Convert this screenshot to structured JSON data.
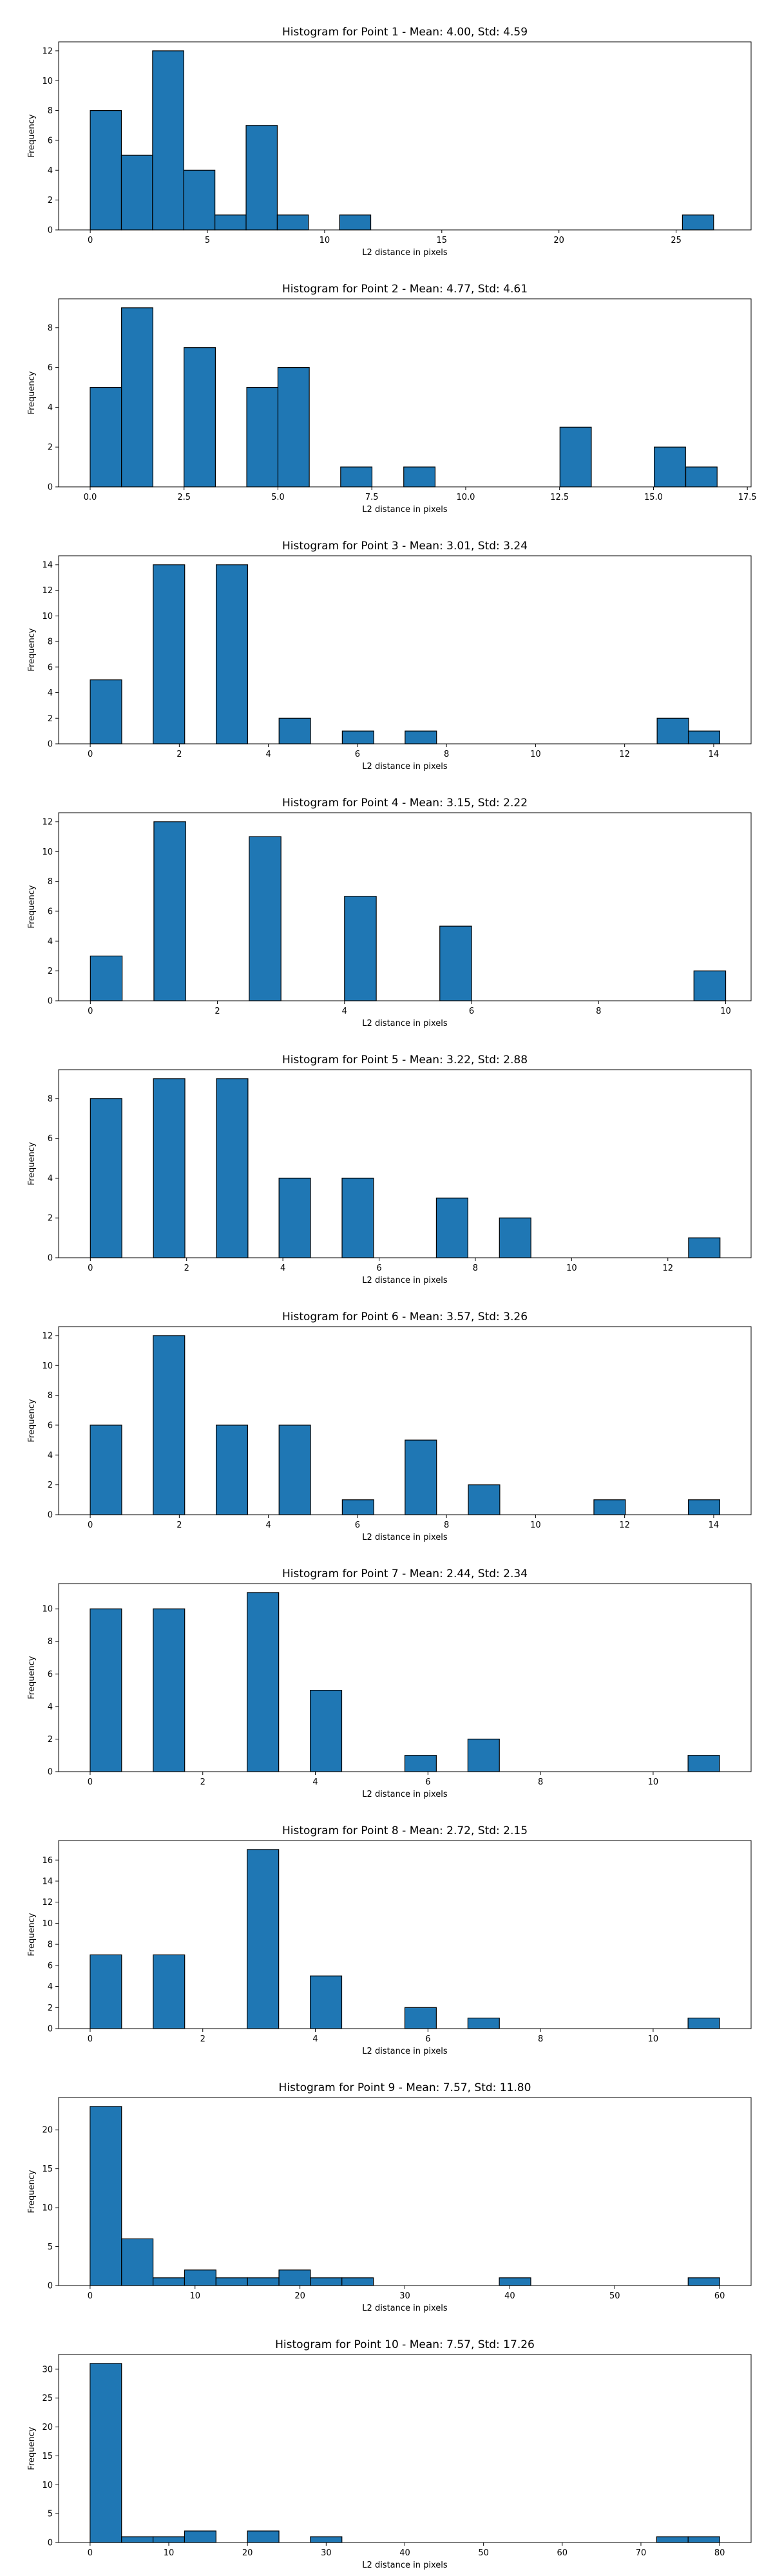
{
  "style": {
    "bar_color": "#1f77b4",
    "edge_color": "#000000"
  },
  "chart_data": [
    {
      "type": "bar",
      "title": "Histogram for Point 1 - Mean: 4.00, Std: 4.59",
      "xlabel": "L2 distance in pixels",
      "ylabel": "Frequency",
      "xlim": [
        -1.35,
        28.2
      ],
      "ylim": [
        0,
        12.6
      ],
      "xticks": [
        0,
        5,
        10,
        15,
        20,
        25
      ],
      "xtick_labels": [
        "0",
        "5",
        "10",
        "15",
        "20",
        "25"
      ],
      "yticks": [
        0,
        2,
        4,
        6,
        8,
        10,
        12
      ],
      "ytick_labels": [
        "0",
        "2",
        "4",
        "6",
        "8",
        "10",
        "12"
      ],
      "bin_width": 1.33,
      "bins": [
        {
          "x": 0.0,
          "count": 8
        },
        {
          "x": 1.33,
          "count": 5
        },
        {
          "x": 2.66,
          "count": 12
        },
        {
          "x": 3.99,
          "count": 4
        },
        {
          "x": 5.32,
          "count": 1
        },
        {
          "x": 6.65,
          "count": 7
        },
        {
          "x": 7.98,
          "count": 1
        },
        {
          "x": 10.64,
          "count": 1
        },
        {
          "x": 25.27,
          "count": 1
        }
      ]
    },
    {
      "type": "bar",
      "title": "Histogram for Point 2 - Mean: 4.77, Std: 4.61",
      "xlabel": "L2 distance in pixels",
      "ylabel": "Frequency",
      "xlim": [
        -0.84,
        17.6
      ],
      "ylim": [
        0,
        9.45
      ],
      "xticks": [
        0,
        2.5,
        5,
        7.5,
        10,
        12.5,
        15,
        17.5
      ],
      "xtick_labels": [
        "0.0",
        "2.5",
        "5.0",
        "7.5",
        "10.0",
        "12.5",
        "15.0",
        "17.5"
      ],
      "yticks": [
        0,
        2,
        4,
        6,
        8
      ],
      "ytick_labels": [
        "0",
        "2",
        "4",
        "6",
        "8"
      ],
      "bin_width": 0.835,
      "bins": [
        {
          "x": 0.0,
          "count": 5
        },
        {
          "x": 0.835,
          "count": 9
        },
        {
          "x": 2.5,
          "count": 7
        },
        {
          "x": 4.17,
          "count": 5
        },
        {
          "x": 5.0,
          "count": 6
        },
        {
          "x": 6.67,
          "count": 1
        },
        {
          "x": 8.35,
          "count": 1
        },
        {
          "x": 12.51,
          "count": 3
        },
        {
          "x": 15.02,
          "count": 2
        },
        {
          "x": 15.86,
          "count": 1
        }
      ]
    },
    {
      "type": "bar",
      "title": "Histogram for Point 3 - Mean: 3.01, Std: 3.24",
      "xlabel": "L2 distance in pixels",
      "ylabel": "Frequency",
      "xlim": [
        -0.71,
        14.84
      ],
      "ylim": [
        0,
        14.7
      ],
      "xticks": [
        0,
        2,
        4,
        6,
        8,
        10,
        12,
        14
      ],
      "xtick_labels": [
        "0",
        "2",
        "4",
        "6",
        "8",
        "10",
        "12",
        "14"
      ],
      "yticks": [
        0,
        2,
        4,
        6,
        8,
        10,
        12,
        14
      ],
      "ytick_labels": [
        "0",
        "2",
        "4",
        "6",
        "8",
        "10",
        "12",
        "14"
      ],
      "bin_width": 0.707,
      "bins": [
        {
          "x": 0.0,
          "count": 5
        },
        {
          "x": 1.414,
          "count": 14
        },
        {
          "x": 2.828,
          "count": 14
        },
        {
          "x": 4.24,
          "count": 2
        },
        {
          "x": 5.66,
          "count": 1
        },
        {
          "x": 7.07,
          "count": 1
        },
        {
          "x": 12.73,
          "count": 2
        },
        {
          "x": 13.43,
          "count": 1
        }
      ]
    },
    {
      "type": "bar",
      "title": "Histogram for Point 4 - Mean: 3.15, Std: 2.22",
      "xlabel": "L2 distance in pixels",
      "ylabel": "Frequency",
      "xlim": [
        -0.5,
        10.4
      ],
      "ylim": [
        0,
        12.6
      ],
      "xticks": [
        0,
        2,
        4,
        6,
        8,
        10
      ],
      "xtick_labels": [
        "0",
        "2",
        "4",
        "6",
        "8",
        "10"
      ],
      "yticks": [
        0,
        2,
        4,
        6,
        8,
        10,
        12
      ],
      "ytick_labels": [
        "0",
        "2",
        "4",
        "6",
        "8",
        "10",
        "12"
      ],
      "bin_width": 0.5,
      "bins": [
        {
          "x": 0.0,
          "count": 3
        },
        {
          "x": 1.0,
          "count": 12
        },
        {
          "x": 2.5,
          "count": 11
        },
        {
          "x": 4.0,
          "count": 7
        },
        {
          "x": 5.5,
          "count": 5
        },
        {
          "x": 9.5,
          "count": 2
        }
      ]
    },
    {
      "type": "bar",
      "title": "Histogram for Point 5 - Mean: 3.22, Std: 2.88",
      "xlabel": "L2 distance in pixels",
      "ylabel": "Frequency",
      "xlim": [
        -0.66,
        13.73
      ],
      "ylim": [
        0,
        9.45
      ],
      "xticks": [
        0,
        2,
        4,
        6,
        8,
        10,
        12
      ],
      "xtick_labels": [
        "0",
        "2",
        "4",
        "6",
        "8",
        "10",
        "12"
      ],
      "yticks": [
        0,
        2,
        4,
        6,
        8
      ],
      "ytick_labels": [
        "0",
        "2",
        "4",
        "6",
        "8"
      ],
      "bin_width": 0.654,
      "bins": [
        {
          "x": 0.0,
          "count": 8
        },
        {
          "x": 1.31,
          "count": 9
        },
        {
          "x": 2.62,
          "count": 9
        },
        {
          "x": 3.92,
          "count": 4
        },
        {
          "x": 5.23,
          "count": 4
        },
        {
          "x": 7.19,
          "count": 3
        },
        {
          "x": 8.5,
          "count": 2
        },
        {
          "x": 12.43,
          "count": 1
        }
      ]
    },
    {
      "type": "bar",
      "title": "Histogram for Point 6 - Mean: 3.57, Std: 3.26",
      "xlabel": "L2 distance in pixels",
      "ylabel": "Frequency",
      "xlim": [
        -0.71,
        14.84
      ],
      "ylim": [
        0,
        12.6
      ],
      "xticks": [
        0,
        2,
        4,
        6,
        8,
        10,
        12,
        14
      ],
      "xtick_labels": [
        "0",
        "2",
        "4",
        "6",
        "8",
        "10",
        "12",
        "14"
      ],
      "yticks": [
        0,
        2,
        4,
        6,
        8,
        10,
        12
      ],
      "ytick_labels": [
        "0",
        "2",
        "4",
        "6",
        "8",
        "10",
        "12"
      ],
      "bin_width": 0.707,
      "bins": [
        {
          "x": 0.0,
          "count": 6
        },
        {
          "x": 1.414,
          "count": 12
        },
        {
          "x": 2.828,
          "count": 6
        },
        {
          "x": 4.24,
          "count": 6
        },
        {
          "x": 5.66,
          "count": 1
        },
        {
          "x": 7.07,
          "count": 5
        },
        {
          "x": 8.49,
          "count": 2
        },
        {
          "x": 11.31,
          "count": 1
        },
        {
          "x": 13.43,
          "count": 1
        }
      ]
    },
    {
      "type": "bar",
      "title": "Histogram for Point 7 - Mean: 2.44, Std: 2.34",
      "xlabel": "L2 distance in pixels",
      "ylabel": "Frequency",
      "xlim": [
        -0.56,
        11.74
      ],
      "ylim": [
        0,
        11.55
      ],
      "xticks": [
        0,
        2,
        4,
        6,
        8,
        10
      ],
      "xtick_labels": [
        "0",
        "2",
        "4",
        "6",
        "8",
        "10"
      ],
      "yticks": [
        0,
        2,
        4,
        6,
        8,
        10
      ],
      "ytick_labels": [
        "0",
        "2",
        "4",
        "6",
        "8",
        "10"
      ],
      "bin_width": 0.559,
      "bins": [
        {
          "x": 0.0,
          "count": 10
        },
        {
          "x": 1.12,
          "count": 10
        },
        {
          "x": 2.79,
          "count": 11
        },
        {
          "x": 3.91,
          "count": 5
        },
        {
          "x": 5.59,
          "count": 1
        },
        {
          "x": 6.71,
          "count": 2
        },
        {
          "x": 10.62,
          "count": 1
        }
      ]
    },
    {
      "type": "bar",
      "title": "Histogram for Point 8 - Mean: 2.72, Std: 2.15",
      "xlabel": "L2 distance in pixels",
      "ylabel": "Frequency",
      "xlim": [
        -0.56,
        11.74
      ],
      "ylim": [
        0,
        17.85
      ],
      "xticks": [
        0,
        2,
        4,
        6,
        8,
        10
      ],
      "xtick_labels": [
        "0",
        "2",
        "4",
        "6",
        "8",
        "10"
      ],
      "yticks": [
        0,
        2,
        4,
        6,
        8,
        10,
        12,
        14,
        16
      ],
      "ytick_labels": [
        "0",
        "2",
        "4",
        "6",
        "8",
        "10",
        "12",
        "14",
        "16"
      ],
      "bin_width": 0.559,
      "bins": [
        {
          "x": 0.0,
          "count": 7
        },
        {
          "x": 1.12,
          "count": 7
        },
        {
          "x": 2.79,
          "count": 17
        },
        {
          "x": 3.91,
          "count": 5
        },
        {
          "x": 5.59,
          "count": 2
        },
        {
          "x": 6.71,
          "count": 1
        },
        {
          "x": 10.62,
          "count": 1
        }
      ]
    },
    {
      "type": "bar",
      "title": "Histogram for Point 9 - Mean: 7.57, Std: 11.80",
      "xlabel": "L2 distance in pixels",
      "ylabel": "Frequency",
      "xlim": [
        -3.0,
        63.0
      ],
      "ylim": [
        0,
        24.15
      ],
      "xticks": [
        0,
        10,
        20,
        30,
        40,
        50,
        60
      ],
      "xtick_labels": [
        "0",
        "10",
        "20",
        "30",
        "40",
        "50",
        "60"
      ],
      "yticks": [
        0,
        5,
        10,
        15,
        20
      ],
      "ytick_labels": [
        "0",
        "5",
        "10",
        "15",
        "20"
      ],
      "bin_width": 3.0,
      "bins": [
        {
          "x": 0.0,
          "count": 23
        },
        {
          "x": 3.0,
          "count": 6
        },
        {
          "x": 6.0,
          "count": 1
        },
        {
          "x": 9.0,
          "count": 2
        },
        {
          "x": 12.0,
          "count": 1
        },
        {
          "x": 15.0,
          "count": 1
        },
        {
          "x": 18.0,
          "count": 2
        },
        {
          "x": 21.0,
          "count": 1
        },
        {
          "x": 24.0,
          "count": 1
        },
        {
          "x": 39.0,
          "count": 1
        },
        {
          "x": 57.0,
          "count": 1
        }
      ]
    },
    {
      "type": "bar",
      "title": "Histogram for Point 10 - Mean: 7.57, Std: 17.26",
      "xlabel": "L2 distance in pixels",
      "ylabel": "Frequency",
      "xlim": [
        -4.0,
        84.0
      ],
      "ylim": [
        0,
        32.55
      ],
      "xticks": [
        0,
        10,
        20,
        30,
        40,
        50,
        60,
        70,
        80
      ],
      "xtick_labels": [
        "0",
        "10",
        "20",
        "30",
        "40",
        "50",
        "60",
        "70",
        "80"
      ],
      "yticks": [
        0,
        5,
        10,
        15,
        20,
        25,
        30
      ],
      "ytick_labels": [
        "0",
        "5",
        "10",
        "15",
        "20",
        "25",
        "30"
      ],
      "bin_width": 4.0,
      "bins": [
        {
          "x": 0.0,
          "count": 31
        },
        {
          "x": 4.0,
          "count": 1
        },
        {
          "x": 8.0,
          "count": 1
        },
        {
          "x": 12.0,
          "count": 2
        },
        {
          "x": 20.0,
          "count": 2
        },
        {
          "x": 28.0,
          "count": 1
        },
        {
          "x": 72.0,
          "count": 1
        },
        {
          "x": 76.0,
          "count": 1
        }
      ]
    }
  ]
}
